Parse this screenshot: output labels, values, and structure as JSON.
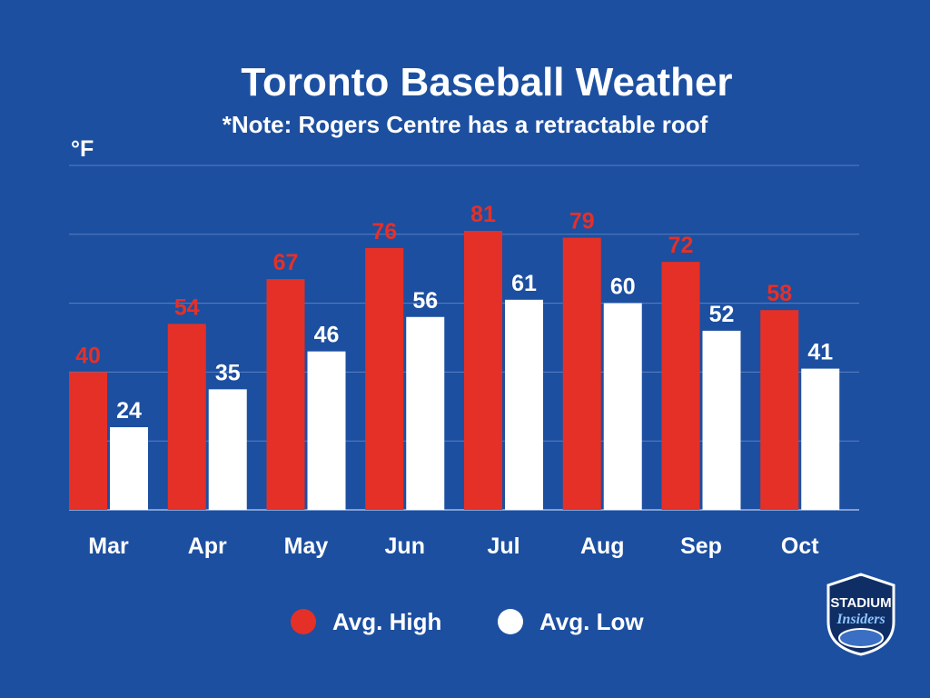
{
  "header": {
    "title": "Toronto Baseball Weather",
    "subtitle": "*Note: Rogers Centre has a retractable roof",
    "unit": "°F"
  },
  "legend": {
    "high_label": "Avg. High",
    "low_label": "Avg. Low"
  },
  "logo": {
    "text_top": "STADIUM",
    "text_bottom": "Insiders"
  },
  "colors": {
    "background": "#1c4fa0",
    "high": "#e53027",
    "low": "#ffffff",
    "grid": "#5a7fc0"
  },
  "chart_data": {
    "type": "bar",
    "title": "Toronto Baseball Weather",
    "subtitle": "*Note: Rogers Centre has a retractable roof",
    "ylabel": "°F",
    "categories": [
      "Mar",
      "Apr",
      "May",
      "Jun",
      "Jul",
      "Aug",
      "Sep",
      "Oct"
    ],
    "series": [
      {
        "name": "Avg. High",
        "values": [
          40,
          54,
          67,
          76,
          81,
          79,
          72,
          58
        ],
        "color": "#e53027"
      },
      {
        "name": "Avg. Low",
        "values": [
          24,
          35,
          46,
          56,
          61,
          60,
          52,
          41
        ],
        "color": "#ffffff"
      }
    ],
    "ylim": [
      0,
      100
    ],
    "grid": true,
    "legend_position": "bottom-center"
  }
}
